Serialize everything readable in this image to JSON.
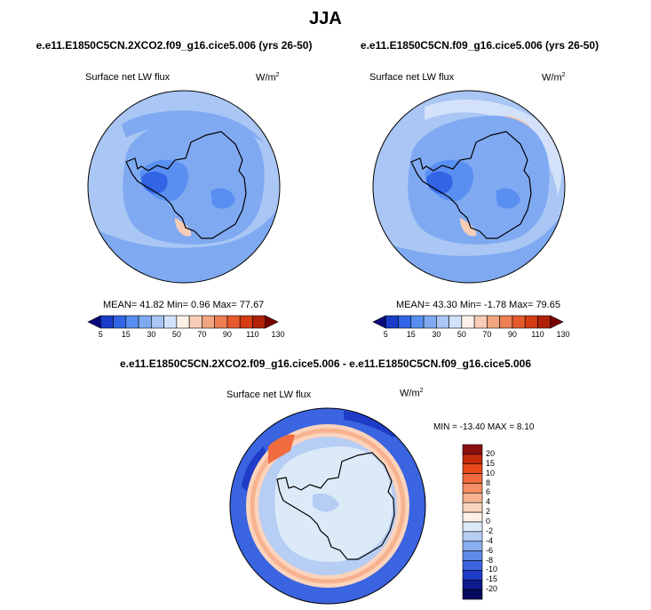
{
  "title": "JJA",
  "panels": [
    {
      "case": "e.e11.E1850C5CN.2XCO2.f09_g16.cice5.006 (yrs 26-50)",
      "variable": "Surface net LW flux",
      "units_base": "W/m",
      "units_exp": "2",
      "stats": "MEAN= 41.82  Min=  0.96  Max=  77.67"
    },
    {
      "case": "e.e11.E1850C5CN.f09_g16.cice5.006 (yrs 26-50)",
      "variable": "Surface net LW flux",
      "units_base": "W/m",
      "units_exp": "2",
      "stats": "MEAN= 43.30  Min=  -1.78  Max=  79.65"
    }
  ],
  "diff": {
    "title": "e.e11.E1850C5CN.2XCO2.f09_g16.cice5.006 - e.e11.E1850C5CN.f09_g16.cice5.006",
    "variable": "Surface net LW flux",
    "units_base": "W/m",
    "units_exp": "2",
    "stats": "MIN = -13.40  MAX =   8.10"
  },
  "colorbar_h": {
    "ticks": [
      "5",
      "15",
      "30",
      "50",
      "70",
      "90",
      "110",
      "130"
    ],
    "colors": [
      "#0a0a7a",
      "#1a3cc8",
      "#3264e6",
      "#5a8ff2",
      "#7faaf2",
      "#a9c6f4",
      "#d3e2fa",
      "#fdf0e8",
      "#f7cdb8",
      "#f2a680",
      "#ee7f55",
      "#e65a2e",
      "#d43c14",
      "#b02208",
      "#7a0000"
    ]
  },
  "colorbar_v": {
    "labels": [
      "20",
      "15",
      "10",
      "8",
      "6",
      "4",
      "2",
      "0",
      "-2",
      "-4",
      "-6",
      "-8",
      "-10",
      "-15",
      "-20"
    ],
    "colors": [
      "#8a0e0e",
      "#c42a0c",
      "#e84a1c",
      "#f06c3e",
      "#f58e63",
      "#f8b28f",
      "#fbd4bd",
      "#fdf0e6",
      "#dceaf8",
      "#b6cdf4",
      "#8aaef0",
      "#5f8ae8",
      "#3a64e0",
      "#1e3cc8",
      "#0c1a8c",
      "#050a5c"
    ]
  },
  "map_colors": {
    "ocean_blue": "#a9c6f4",
    "ocean_light": "#d3e2fa",
    "ice_mid": "#7faaf2",
    "ice_dark": "#5a8ff2",
    "ice_darker": "#3264e6",
    "warm": "#f7cdb8",
    "diff_zero": "#dceaf8",
    "diff_red": "#f06c3e",
    "diff_blue": "#3a64e0"
  }
}
